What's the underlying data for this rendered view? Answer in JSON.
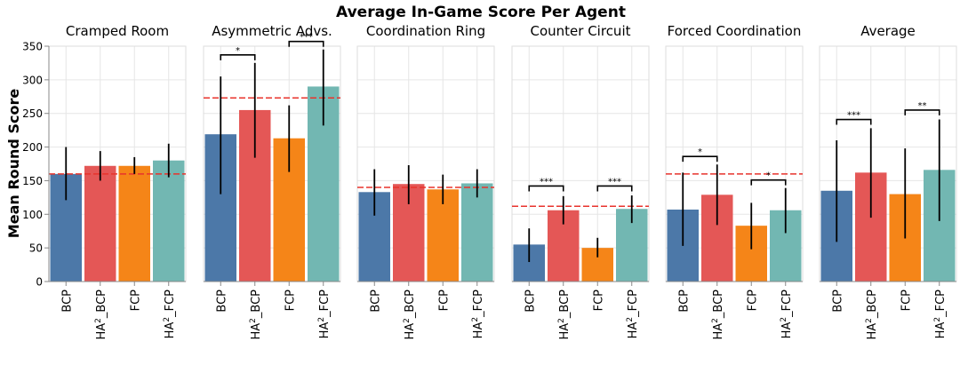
{
  "figure": {
    "title": "Average In-Game Score Per Agent",
    "ylabel": "Mean Round Score"
  },
  "colors": {
    "BCP": "#4c78a8",
    "HA2_BCP": "#e45756",
    "FCP": "#f58518",
    "HA2_FCP": "#72b7b2",
    "human_baseline": "#e8332c",
    "error_bar": "#000000",
    "grid": "#e6e6e6"
  },
  "chart_data": [
    {
      "type": "bar",
      "title": "Cramped Room",
      "categories": [
        "BCP",
        "HA2_BCP",
        "FCP",
        "HA2_FCP"
      ],
      "category_labels": [
        [
          "BCP"
        ],
        [
          "HA",
          "2",
          "_BCP"
        ],
        [
          "FCP"
        ],
        [
          "HA",
          "2",
          "_FCP"
        ]
      ],
      "values": [
        160,
        172,
        172,
        180
      ],
      "error_low": [
        121,
        150,
        160,
        155
      ],
      "error_high": [
        200,
        194,
        185,
        205
      ],
      "reference_line": 160,
      "significance": [],
      "ylim": [
        0,
        350
      ]
    },
    {
      "type": "bar",
      "title": "Asymmetric Advs.",
      "categories": [
        "BCP",
        "HA2_BCP",
        "FCP",
        "HA2_FCP"
      ],
      "category_labels": [
        [
          "BCP"
        ],
        [
          "HA",
          "2",
          "_BCP"
        ],
        [
          "FCP"
        ],
        [
          "HA",
          "2",
          "_FCP"
        ]
      ],
      "values": [
        219,
        255,
        213,
        290
      ],
      "error_low": [
        130,
        184,
        163,
        232
      ],
      "error_high": [
        305,
        325,
        262,
        345
      ],
      "reference_line": 273,
      "significance": [
        {
          "from": 0,
          "to": 1,
          "level": 337,
          "label": "*"
        },
        {
          "from": 2,
          "to": 3,
          "level": 357,
          "label": "***"
        }
      ],
      "ylim": [
        0,
        350
      ]
    },
    {
      "type": "bar",
      "title": "Coordination Ring",
      "categories": [
        "BCP",
        "HA2_BCP",
        "FCP",
        "HA2_FCP"
      ],
      "category_labels": [
        [
          "BCP"
        ],
        [
          "HA",
          "2",
          "_BCP"
        ],
        [
          "FCP"
        ],
        [
          "HA",
          "2",
          "_FCP"
        ]
      ],
      "values": [
        133,
        145,
        137,
        146
      ],
      "error_low": [
        98,
        115,
        115,
        125
      ],
      "error_high": [
        167,
        173,
        159,
        167
      ],
      "reference_line": 140,
      "significance": [],
      "ylim": [
        0,
        350
      ]
    },
    {
      "type": "bar",
      "title": "Counter Circuit",
      "categories": [
        "BCP",
        "HA2_BCP",
        "FCP",
        "HA2_FCP"
      ],
      "category_labels": [
        [
          "BCP"
        ],
        [
          "HA",
          "2",
          "_BCP"
        ],
        [
          "FCP"
        ],
        [
          "HA",
          "2",
          "_FCP"
        ]
      ],
      "values": [
        55,
        106,
        50,
        108
      ],
      "error_low": [
        29,
        85,
        36,
        87
      ],
      "error_high": [
        79,
        127,
        65,
        128
      ],
      "reference_line": 112,
      "significance": [
        {
          "from": 0,
          "to": 1,
          "level": 142,
          "label": "***"
        },
        {
          "from": 2,
          "to": 3,
          "level": 142,
          "label": "***"
        }
      ],
      "ylim": [
        0,
        350
      ]
    },
    {
      "type": "bar",
      "title": "Forced Coordination",
      "categories": [
        "BCP",
        "HA2_BCP",
        "FCP",
        "HA2_FCP"
      ],
      "category_labels": [
        [
          "BCP"
        ],
        [
          "HA",
          "2",
          "_BCP"
        ],
        [
          "FCP"
        ],
        [
          "HA",
          "2",
          "_FCP"
        ]
      ],
      "values": [
        107,
        129,
        83,
        106
      ],
      "error_low": [
        53,
        84,
        48,
        72
      ],
      "error_high": [
        162,
        174,
        117,
        139
      ],
      "reference_line": 160,
      "significance": [
        {
          "from": 0,
          "to": 1,
          "level": 186,
          "label": "*"
        },
        {
          "from": 2,
          "to": 3,
          "level": 151,
          "label": "*"
        }
      ],
      "ylim": [
        0,
        350
      ]
    },
    {
      "type": "bar",
      "title": "Average",
      "categories": [
        "BCP",
        "HA2_BCP",
        "FCP",
        "HA2_FCP"
      ],
      "category_labels": [
        [
          "BCP"
        ],
        [
          "HA",
          "2",
          "_BCP"
        ],
        [
          "FCP"
        ],
        [
          "HA",
          "2",
          "_FCP"
        ]
      ],
      "values": [
        135,
        162,
        130,
        166
      ],
      "error_low": [
        59,
        95,
        64,
        90
      ],
      "error_high": [
        210,
        228,
        198,
        241
      ],
      "reference_line": null,
      "significance": [
        {
          "from": 0,
          "to": 1,
          "level": 241,
          "label": "***"
        },
        {
          "from": 2,
          "to": 3,
          "level": 255,
          "label": "**"
        }
      ],
      "ylim": [
        0,
        350
      ]
    }
  ],
  "yticks": [
    0,
    50,
    100,
    150,
    200,
    250,
    300,
    350
  ]
}
